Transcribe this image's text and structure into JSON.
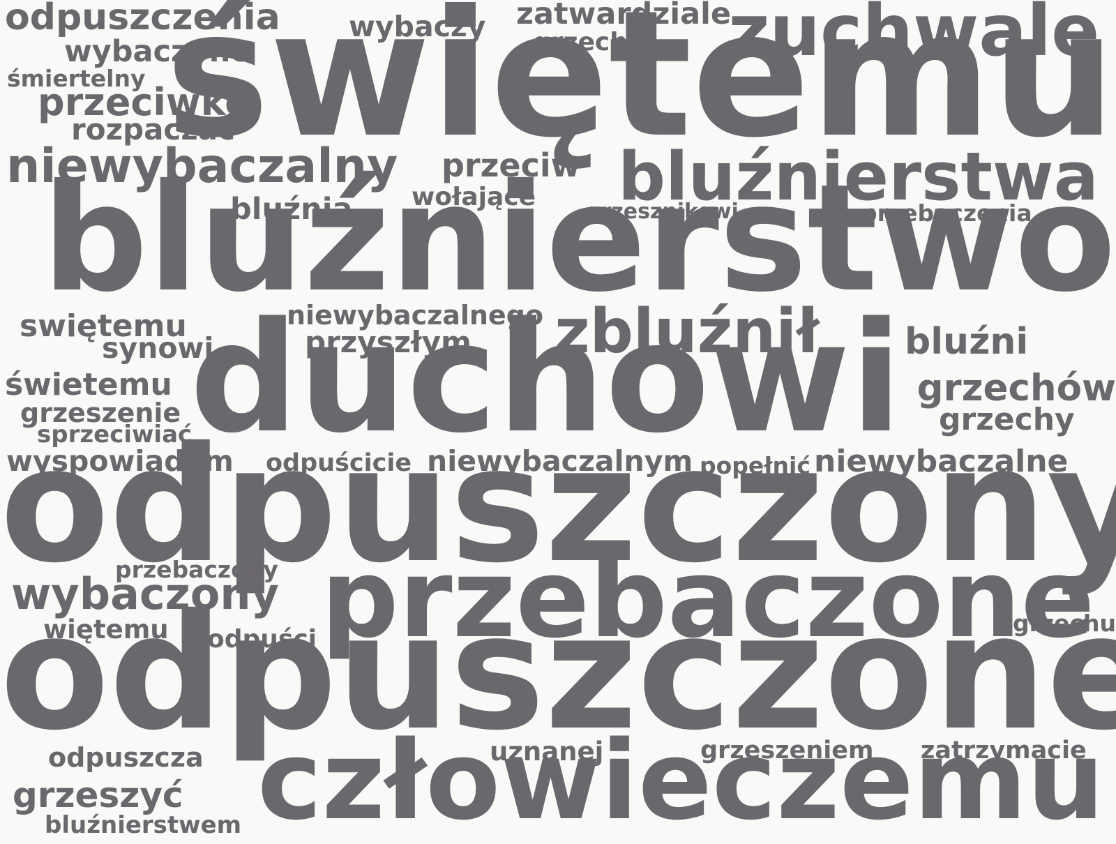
{
  "text_color": "#6a676d",
  "background_color": "#f9f9f7",
  "words": [
    "odpuszczenia",
    "wybaczy",
    "zatwardziale",
    "zuchwale",
    "grzech",
    "wybaczone",
    "świętemu",
    "śmiertelny",
    "przeciwko",
    "rozpaczać",
    "niewybaczalny",
    "przeciw",
    "bluźnierstwa",
    "wołające",
    "bluźnią",
    "grzesznikowi",
    "przebaczenia",
    "bluźnierstwo",
    "niewybaczalnego",
    "swiętemu",
    "zbluźnił",
    "przyszłym",
    "bluźni",
    "synowi",
    "świetemu",
    "duchowi",
    "grzechów",
    "grzeszenie",
    "grzechy",
    "sprzeciwiać",
    "wyspowiadam",
    "odpuścicie",
    "niewybaczalnym",
    "popełnić",
    "niewybaczalne",
    "odpuszczony",
    "przebaczony",
    "wybaczony",
    "przebaczone",
    "więtemu",
    "odpuści",
    "grzechu",
    "odpuszczone",
    "uznanej",
    "grzeszeniem",
    "zatrzymacie",
    "odpuszcza",
    "grzeszyć",
    "człowieczemu",
    "bluźnierstwem"
  ]
}
